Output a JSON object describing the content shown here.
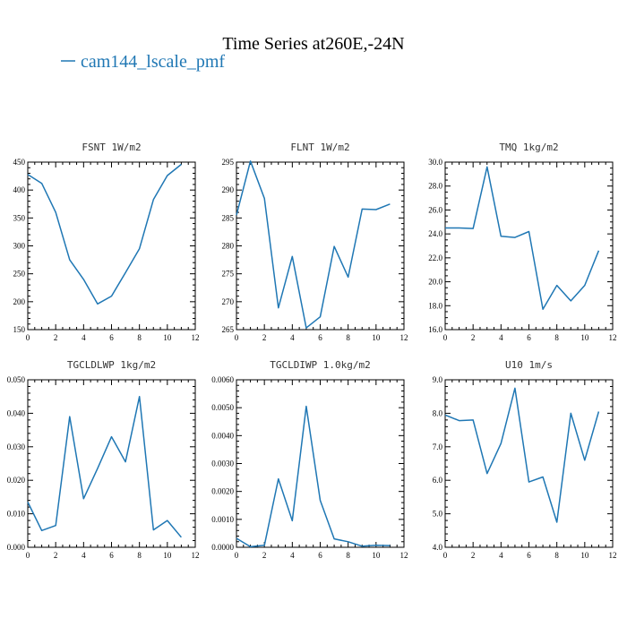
{
  "figure": {
    "title": "Time Series at260E,-24N",
    "legend_label": "cam144_lscale_pmf",
    "series_color": "#1f77b4"
  },
  "chart_data": [
    {
      "type": "line",
      "title": "FSNT   1W/m2",
      "x": [
        0,
        1,
        2,
        3,
        4,
        5,
        6,
        7,
        8,
        9,
        10,
        11
      ],
      "series": [
        {
          "name": "cam144_lscale_pmf",
          "values": [
            428,
            412,
            360,
            275,
            240,
            196,
            210,
            252,
            295,
            383,
            426,
            446
          ]
        }
      ],
      "xlim": [
        0,
        12
      ],
      "ylim": [
        150,
        450
      ],
      "xticks": [
        0,
        2,
        4,
        6,
        8,
        10,
        12
      ],
      "yticks": [
        150,
        200,
        250,
        300,
        350,
        400,
        450
      ],
      "yminor": 5,
      "ytick_format": 0
    },
    {
      "type": "line",
      "title": "FLNT   1W/m2",
      "x": [
        0,
        1,
        2,
        3,
        4,
        5,
        6,
        7,
        8,
        9,
        10,
        11
      ],
      "series": [
        {
          "name": "cam144_lscale_pmf",
          "values": [
            285.5,
            295.2,
            288.5,
            268.9,
            278.1,
            265.3,
            267.3,
            279.9,
            274.4,
            286.6,
            286.5,
            287.5
          ]
        }
      ],
      "xlim": [
        0,
        12
      ],
      "ylim": [
        265,
        295
      ],
      "xticks": [
        0,
        2,
        4,
        6,
        8,
        10,
        12
      ],
      "yticks": [
        265,
        270,
        275,
        280,
        285,
        290,
        295
      ],
      "yminor": 5,
      "ytick_format": 0
    },
    {
      "type": "line",
      "title": "TMQ   1kg/m2",
      "x": [
        0,
        1,
        2,
        3,
        4,
        5,
        6,
        7,
        8,
        9,
        10,
        11
      ],
      "series": [
        {
          "name": "cam144_lscale_pmf",
          "values": [
            24.5,
            24.5,
            24.45,
            29.6,
            23.8,
            23.7,
            24.2,
            17.7,
            19.7,
            18.4,
            19.7,
            22.6
          ]
        }
      ],
      "xlim": [
        0,
        12
      ],
      "ylim": [
        16,
        30
      ],
      "xticks": [
        0,
        2,
        4,
        6,
        8,
        10,
        12
      ],
      "yticks": [
        16,
        18,
        20,
        22,
        24,
        26,
        28,
        30
      ],
      "yminor": 4,
      "ytick_format": 1
    },
    {
      "type": "line",
      "title": "TGCLDLWP   1kg/m2",
      "x": [
        0,
        1,
        2,
        3,
        4,
        5,
        6,
        7,
        8,
        9,
        10,
        11
      ],
      "series": [
        {
          "name": "cam144_lscale_pmf",
          "values": [
            0.0135,
            0.005,
            0.0065,
            0.039,
            0.0145,
            0.0235,
            0.033,
            0.0255,
            0.045,
            0.0052,
            0.008,
            0.003
          ]
        }
      ],
      "xlim": [
        0,
        12
      ],
      "ylim": [
        0,
        0.05
      ],
      "xticks": [
        0,
        2,
        4,
        6,
        8,
        10,
        12
      ],
      "yticks": [
        0,
        0.01,
        0.02,
        0.03,
        0.04,
        0.05
      ],
      "yminor": 5,
      "ytick_format": 3
    },
    {
      "type": "line",
      "title": "TGCLDIWP   1.0kg/m2",
      "x": [
        0,
        1,
        2,
        3,
        4,
        5,
        6,
        7,
        8,
        9,
        10,
        11
      ],
      "series": [
        {
          "name": "cam144_lscale_pmf",
          "values": [
            0.00032,
            2e-05,
            7e-05,
            0.00245,
            0.00095,
            0.00505,
            0.00168,
            0.0003,
            0.0002,
            4e-05,
            7e-05,
            6e-05
          ]
        }
      ],
      "xlim": [
        0,
        12
      ],
      "ylim": [
        0,
        0.006
      ],
      "xticks": [
        0,
        2,
        4,
        6,
        8,
        10,
        12
      ],
      "yticks": [
        0,
        0.001,
        0.002,
        0.003,
        0.004,
        0.005,
        0.006
      ],
      "yminor": 5,
      "ytick_format": 4
    },
    {
      "type": "line",
      "title": "U10   1m/s",
      "x": [
        0,
        1,
        2,
        3,
        4,
        5,
        6,
        7,
        8,
        9,
        10,
        11
      ],
      "series": [
        {
          "name": "cam144_lscale_pmf",
          "values": [
            7.95,
            7.78,
            7.8,
            6.2,
            7.1,
            8.75,
            5.95,
            6.1,
            4.75,
            8.0,
            6.6,
            8.05
          ]
        }
      ],
      "xlim": [
        0,
        12
      ],
      "ylim": [
        4,
        9
      ],
      "xticks": [
        0,
        2,
        4,
        6,
        8,
        10,
        12
      ],
      "yticks": [
        4,
        5,
        6,
        7,
        8,
        9
      ],
      "yminor": 5,
      "ytick_format": 1
    }
  ]
}
